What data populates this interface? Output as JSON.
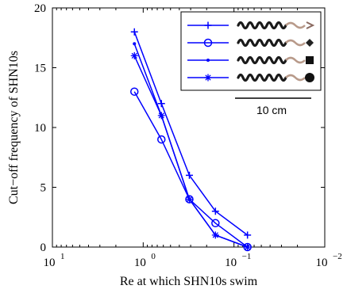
{
  "chart_data": {
    "type": "line",
    "title": "",
    "xlabel": "Re at which SHN10s swim",
    "ylabel": "Cut−off frequency of SHN10s",
    "xscale": "log",
    "x_reversed": true,
    "xlim": [
      10,
      0.01
    ],
    "ylim": [
      0,
      20
    ],
    "x_ticks": [
      {
        "value": 10,
        "base": "10",
        "exp": "1"
      },
      {
        "value": 1,
        "base": "10",
        "exp": "0"
      },
      {
        "value": 0.1,
        "base": "10",
        "exp": "−1"
      },
      {
        "value": 0.01,
        "base": "10",
        "exp": "−2"
      }
    ],
    "y_ticks": [
      "0",
      "5",
      "10",
      "15",
      "20"
    ],
    "y_tick_values": [
      0,
      5,
      10,
      15,
      20
    ],
    "grid": false,
    "legend_position": "top-right",
    "color": "#0000ff",
    "scale_bar_label": "10 cm",
    "series": [
      {
        "marker": "plus",
        "x": [
          1.25,
          0.63,
          0.31,
          0.16,
          0.071
        ],
        "y": [
          18,
          12,
          6,
          3,
          1
        ]
      },
      {
        "marker": "circle",
        "x": [
          1.25,
          0.63,
          0.31,
          0.16,
          0.071
        ],
        "y": [
          13,
          9,
          4,
          2,
          0
        ]
      },
      {
        "marker": "dot",
        "x": [
          1.25,
          0.63,
          0.31,
          0.16,
          0.071
        ],
        "y": [
          17,
          11,
          4,
          1,
          0
        ]
      },
      {
        "marker": "asterisk",
        "x": [
          1.25,
          0.63,
          0.31,
          0.16,
          0.071
        ],
        "y": [
          16,
          11,
          4,
          1,
          0
        ]
      }
    ]
  }
}
